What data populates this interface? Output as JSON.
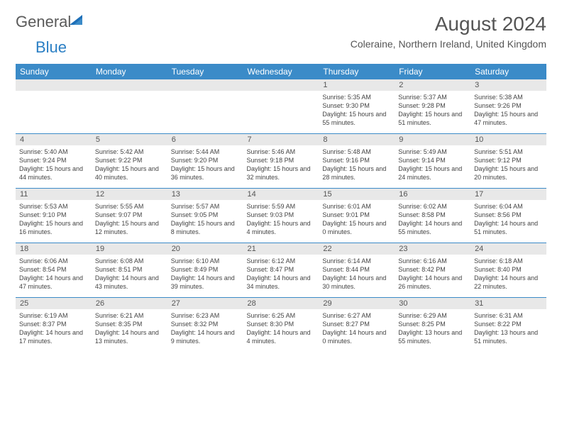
{
  "logo": {
    "textA": "General",
    "textB": "Blue"
  },
  "title": "August 2024",
  "location": "Coleraine, Northern Ireland, United Kingdom",
  "colors": {
    "header_bg": "#3b8bc8",
    "header_text": "#ffffff",
    "band_bg": "#e8e8e8",
    "border": "#3b8bc8",
    "text": "#444444"
  },
  "day_names": [
    "Sunday",
    "Monday",
    "Tuesday",
    "Wednesday",
    "Thursday",
    "Friday",
    "Saturday"
  ],
  "weeks": [
    [
      null,
      null,
      null,
      null,
      {
        "n": "1",
        "sr": "5:35 AM",
        "ss": "9:30 PM",
        "dl": "15 hours and 55 minutes."
      },
      {
        "n": "2",
        "sr": "5:37 AM",
        "ss": "9:28 PM",
        "dl": "15 hours and 51 minutes."
      },
      {
        "n": "3",
        "sr": "5:38 AM",
        "ss": "9:26 PM",
        "dl": "15 hours and 47 minutes."
      }
    ],
    [
      {
        "n": "4",
        "sr": "5:40 AM",
        "ss": "9:24 PM",
        "dl": "15 hours and 44 minutes."
      },
      {
        "n": "5",
        "sr": "5:42 AM",
        "ss": "9:22 PM",
        "dl": "15 hours and 40 minutes."
      },
      {
        "n": "6",
        "sr": "5:44 AM",
        "ss": "9:20 PM",
        "dl": "15 hours and 36 minutes."
      },
      {
        "n": "7",
        "sr": "5:46 AM",
        "ss": "9:18 PM",
        "dl": "15 hours and 32 minutes."
      },
      {
        "n": "8",
        "sr": "5:48 AM",
        "ss": "9:16 PM",
        "dl": "15 hours and 28 minutes."
      },
      {
        "n": "9",
        "sr": "5:49 AM",
        "ss": "9:14 PM",
        "dl": "15 hours and 24 minutes."
      },
      {
        "n": "10",
        "sr": "5:51 AM",
        "ss": "9:12 PM",
        "dl": "15 hours and 20 minutes."
      }
    ],
    [
      {
        "n": "11",
        "sr": "5:53 AM",
        "ss": "9:10 PM",
        "dl": "15 hours and 16 minutes."
      },
      {
        "n": "12",
        "sr": "5:55 AM",
        "ss": "9:07 PM",
        "dl": "15 hours and 12 minutes."
      },
      {
        "n": "13",
        "sr": "5:57 AM",
        "ss": "9:05 PM",
        "dl": "15 hours and 8 minutes."
      },
      {
        "n": "14",
        "sr": "5:59 AM",
        "ss": "9:03 PM",
        "dl": "15 hours and 4 minutes."
      },
      {
        "n": "15",
        "sr": "6:01 AM",
        "ss": "9:01 PM",
        "dl": "15 hours and 0 minutes."
      },
      {
        "n": "16",
        "sr": "6:02 AM",
        "ss": "8:58 PM",
        "dl": "14 hours and 55 minutes."
      },
      {
        "n": "17",
        "sr": "6:04 AM",
        "ss": "8:56 PM",
        "dl": "14 hours and 51 minutes."
      }
    ],
    [
      {
        "n": "18",
        "sr": "6:06 AM",
        "ss": "8:54 PM",
        "dl": "14 hours and 47 minutes."
      },
      {
        "n": "19",
        "sr": "6:08 AM",
        "ss": "8:51 PM",
        "dl": "14 hours and 43 minutes."
      },
      {
        "n": "20",
        "sr": "6:10 AM",
        "ss": "8:49 PM",
        "dl": "14 hours and 39 minutes."
      },
      {
        "n": "21",
        "sr": "6:12 AM",
        "ss": "8:47 PM",
        "dl": "14 hours and 34 minutes."
      },
      {
        "n": "22",
        "sr": "6:14 AM",
        "ss": "8:44 PM",
        "dl": "14 hours and 30 minutes."
      },
      {
        "n": "23",
        "sr": "6:16 AM",
        "ss": "8:42 PM",
        "dl": "14 hours and 26 minutes."
      },
      {
        "n": "24",
        "sr": "6:18 AM",
        "ss": "8:40 PM",
        "dl": "14 hours and 22 minutes."
      }
    ],
    [
      {
        "n": "25",
        "sr": "6:19 AM",
        "ss": "8:37 PM",
        "dl": "14 hours and 17 minutes."
      },
      {
        "n": "26",
        "sr": "6:21 AM",
        "ss": "8:35 PM",
        "dl": "14 hours and 13 minutes."
      },
      {
        "n": "27",
        "sr": "6:23 AM",
        "ss": "8:32 PM",
        "dl": "14 hours and 9 minutes."
      },
      {
        "n": "28",
        "sr": "6:25 AM",
        "ss": "8:30 PM",
        "dl": "14 hours and 4 minutes."
      },
      {
        "n": "29",
        "sr": "6:27 AM",
        "ss": "8:27 PM",
        "dl": "14 hours and 0 minutes."
      },
      {
        "n": "30",
        "sr": "6:29 AM",
        "ss": "8:25 PM",
        "dl": "13 hours and 55 minutes."
      },
      {
        "n": "31",
        "sr": "6:31 AM",
        "ss": "8:22 PM",
        "dl": "13 hours and 51 minutes."
      }
    ]
  ],
  "labels": {
    "sunrise": "Sunrise:",
    "sunset": "Sunset:",
    "daylight": "Daylight:"
  }
}
